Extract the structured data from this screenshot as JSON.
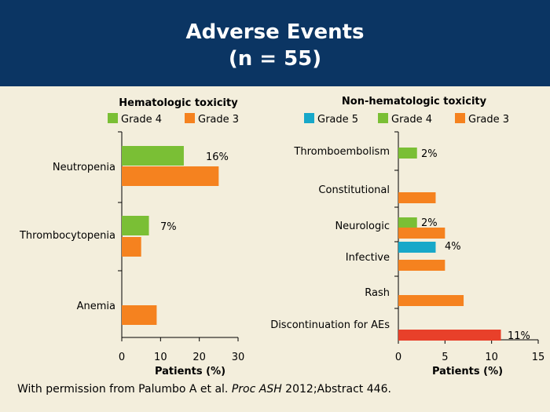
{
  "header": {
    "title_line1": "Adverse Events",
    "title_line2": "(n = 55)"
  },
  "colors": {
    "header_bg": "#0b3563",
    "background": "#f3eedc",
    "grade5": "#17a8c9",
    "grade4": "#7abf35",
    "grade3": "#f5821f",
    "discontinuation": "#e8402a"
  },
  "footnote": {
    "prefix": "With permission from Palumbo A et al. ",
    "journal": "Proc ASH",
    "suffix": " 2012;Abstract 446."
  },
  "chart_data": [
    {
      "type": "bar",
      "orientation": "horizontal",
      "title": "Hematologic toxicity",
      "xlabel": "Patients (%)",
      "xlim": [
        0,
        30
      ],
      "xticks": [
        0,
        10,
        20,
        30
      ],
      "legend": [
        "Grade 4",
        "Grade 3"
      ],
      "categories": [
        "Neutropenia",
        "Thrombocytopenia",
        "Anemia"
      ],
      "series": [
        {
          "name": "Grade 4",
          "values": [
            16,
            7,
            null
          ]
        },
        {
          "name": "Grade 3",
          "values": [
            25,
            5,
            9
          ]
        }
      ],
      "data_labels": [
        {
          "category": "Neutropenia",
          "text": "16%"
        },
        {
          "category": "Thrombocytopenia",
          "text": "7%"
        }
      ]
    },
    {
      "type": "bar",
      "orientation": "horizontal",
      "title": "Non-hematologic toxicity",
      "xlabel": "Patients (%)",
      "xlim": [
        0,
        15
      ],
      "xticks": [
        0,
        5,
        10,
        15
      ],
      "legend": [
        "Grade 5",
        "Grade 4",
        "Grade 3"
      ],
      "categories": [
        "Thromboembolism",
        "Constitutional",
        "Neurologic",
        "Infective",
        "Rash",
        "Discontinuation for AEs"
      ],
      "bars": [
        {
          "category": "Thromboembolism",
          "series": "Grade 4",
          "value": 2
        },
        {
          "category": "Constitutional",
          "series": "Grade 3",
          "value": 4
        },
        {
          "category": "Neurologic",
          "series": "Grade 4",
          "value": 2
        },
        {
          "category": "Neurologic",
          "series": "Grade 3",
          "value": 5
        },
        {
          "category": "Infective",
          "series": "Grade 5",
          "value": 4
        },
        {
          "category": "Infective",
          "series": "Grade 3",
          "value": 5
        },
        {
          "category": "Rash",
          "series": "Grade 3",
          "value": 7
        },
        {
          "category": "Discontinuation for AEs",
          "series": "Discontinuation",
          "value": 11
        }
      ],
      "data_labels": [
        {
          "category": "Thromboembolism",
          "text": "2%"
        },
        {
          "category": "Neurologic",
          "text": "2%"
        },
        {
          "category": "Infective",
          "text": "4%"
        },
        {
          "category": "Discontinuation for AEs",
          "text": "11%"
        }
      ]
    }
  ]
}
